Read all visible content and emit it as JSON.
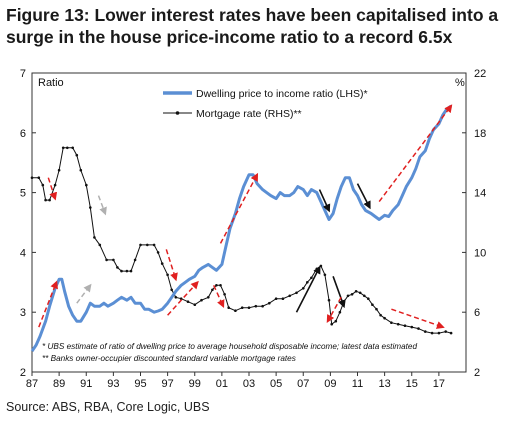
{
  "figure": {
    "title": "Figure 13: Lower interest rates have been capitalised into a surge in the house price-income ratio to a record 6.5x",
    "source": "Source:  ABS, RBA, Core Logic, UBS"
  },
  "chart_data": {
    "type": "line",
    "left_axis_label": "Ratio",
    "right_axis_label": "%",
    "ylim_left": [
      2,
      7
    ],
    "ylim_right": [
      2,
      22
    ],
    "y_ticks_left": [
      "2",
      "3",
      "4",
      "5",
      "6",
      "7"
    ],
    "y_ticks_right": [
      "2",
      "6",
      "10",
      "14",
      "18",
      "22"
    ],
    "x_ticks": [
      "87",
      "89",
      "91",
      "93",
      "95",
      "97",
      "99",
      "01",
      "03",
      "05",
      "07",
      "09",
      "11",
      "13",
      "15",
      "17"
    ],
    "xlim": [
      1987,
      2019
    ],
    "legend_position": "top-center",
    "notes": [
      "* UBS estimate of ratio of dwelling price to average household disposable income; latest data estimated",
      "** Banks owner-occupier discounted standard variable mortgage rates"
    ],
    "colors": {
      "price_ratio": "#5b8fd4",
      "mortgage": "#111111",
      "arrow_red": "#e02020",
      "arrow_grey": "#b0b0b0",
      "arrow_black": "#111111"
    },
    "series": [
      {
        "name": "Dwelling price to income ratio (LHS)*",
        "axis": "left",
        "x": [
          1987.0,
          1987.3,
          1987.6,
          1988.0,
          1988.3,
          1988.7,
          1989.0,
          1989.2,
          1989.4,
          1989.7,
          1990.0,
          1990.3,
          1990.6,
          1991.0,
          1991.3,
          1991.6,
          1992.0,
          1992.3,
          1992.6,
          1993.0,
          1993.3,
          1993.6,
          1994.0,
          1994.3,
          1994.6,
          1995.0,
          1995.3,
          1995.6,
          1996.0,
          1996.3,
          1996.6,
          1997.0,
          1997.3,
          1997.6,
          1998.0,
          1998.3,
          1998.6,
          1999.0,
          1999.3,
          1999.6,
          2000.0,
          2000.3,
          2000.6,
          2001.0,
          2001.3,
          2001.6,
          2002.0,
          2002.3,
          2002.6,
          2003.0,
          2003.3,
          2003.6,
          2004.0,
          2004.3,
          2004.6,
          2005.0,
          2005.3,
          2005.6,
          2006.0,
          2006.3,
          2006.6,
          2007.0,
          2007.3,
          2007.6,
          2008.0,
          2008.3,
          2008.6,
          2008.9,
          2009.2,
          2009.5,
          2009.8,
          2010.1,
          2010.4,
          2010.7,
          2011.0,
          2011.3,
          2011.6,
          2012.0,
          2012.3,
          2012.6,
          2013.0,
          2013.3,
          2013.6,
          2014.0,
          2014.3,
          2014.6,
          2015.0,
          2015.3,
          2015.6,
          2016.0,
          2016.3,
          2016.6,
          2017.0,
          2017.3,
          2017.6,
          2017.9
        ],
        "values": [
          2.35,
          2.45,
          2.6,
          2.85,
          3.1,
          3.4,
          3.55,
          3.55,
          3.35,
          3.1,
          2.95,
          2.85,
          2.85,
          3.0,
          3.15,
          3.1,
          3.1,
          3.15,
          3.1,
          3.15,
          3.2,
          3.25,
          3.2,
          3.25,
          3.15,
          3.15,
          3.05,
          3.05,
          3.0,
          3.02,
          3.05,
          3.15,
          3.25,
          3.35,
          3.45,
          3.5,
          3.55,
          3.6,
          3.7,
          3.75,
          3.8,
          3.75,
          3.7,
          3.8,
          4.1,
          4.4,
          4.65,
          4.9,
          5.1,
          5.3,
          5.3,
          5.15,
          5.05,
          5.0,
          4.95,
          4.9,
          5.0,
          4.95,
          4.95,
          5.0,
          5.1,
          5.05,
          4.95,
          5.05,
          5.0,
          4.85,
          4.7,
          4.55,
          4.65,
          4.9,
          5.1,
          5.25,
          5.25,
          5.05,
          4.95,
          4.8,
          4.7,
          4.65,
          4.6,
          4.55,
          4.62,
          4.6,
          4.7,
          4.8,
          4.95,
          5.1,
          5.25,
          5.4,
          5.6,
          5.7,
          5.9,
          6.05,
          6.15,
          6.3,
          6.4,
          6.45
        ]
      },
      {
        "name": "Mortgage rate (RHS)**",
        "axis": "right",
        "x": [
          1987.0,
          1987.5,
          1987.8,
          1988.0,
          1988.3,
          1988.7,
          1989.0,
          1989.3,
          1989.6,
          1990.0,
          1990.3,
          1990.6,
          1991.0,
          1991.3,
          1991.6,
          1992.0,
          1992.5,
          1993.0,
          1993.3,
          1993.6,
          1994.0,
          1994.3,
          1994.6,
          1995.0,
          1995.5,
          1996.0,
          1996.3,
          1996.6,
          1997.0,
          1997.3,
          1997.6,
          1998.0,
          1998.5,
          1999.0,
          1999.5,
          2000.0,
          2000.3,
          2000.6,
          2000.9,
          2001.2,
          2001.5,
          2002.0,
          2002.5,
          2003.0,
          2003.5,
          2004.0,
          2004.5,
          2005.0,
          2005.5,
          2006.0,
          2006.5,
          2007.0,
          2007.3,
          2007.6,
          2008.0,
          2008.3,
          2008.6,
          2008.9,
          2009.1,
          2009.4,
          2009.7,
          2010.0,
          2010.3,
          2010.6,
          2010.9,
          2011.2,
          2011.5,
          2011.8,
          2012.1,
          2012.4,
          2012.7,
          2013.0,
          2013.5,
          2014.0,
          2014.5,
          2015.0,
          2015.5,
          2016.0,
          2016.5,
          2017.0,
          2017.5,
          2017.9
        ],
        "values": [
          15.0,
          15.0,
          14.5,
          13.5,
          13.5,
          14.5,
          15.5,
          17.0,
          17.0,
          17.0,
          16.5,
          15.5,
          14.5,
          13.0,
          11.0,
          10.5,
          9.5,
          9.5,
          9.0,
          8.75,
          8.75,
          8.75,
          9.5,
          10.5,
          10.5,
          10.5,
          10.0,
          9.25,
          8.5,
          7.5,
          7.0,
          6.9,
          6.7,
          6.5,
          6.8,
          7.0,
          7.5,
          7.8,
          7.8,
          7.2,
          6.3,
          6.1,
          6.3,
          6.3,
          6.4,
          6.4,
          6.6,
          6.9,
          6.9,
          7.1,
          7.3,
          7.6,
          8.0,
          8.3,
          8.9,
          9.1,
          8.5,
          6.8,
          5.2,
          5.4,
          6.0,
          6.7,
          7.1,
          7.2,
          7.4,
          7.3,
          7.1,
          6.9,
          6.5,
          6.2,
          5.8,
          5.6,
          5.3,
          5.2,
          5.1,
          5.0,
          4.9,
          4.7,
          4.6,
          4.6,
          4.7,
          4.6
        ]
      }
    ],
    "arrows": [
      {
        "color": "red",
        "from": [
          1988.2,
          5.25
        ],
        "to": [
          1988.7,
          4.9
        ],
        "axis": "left"
      },
      {
        "color": "red",
        "from": [
          1987.5,
          2.75
        ],
        "to": [
          1988.8,
          3.5
        ],
        "axis": "left"
      },
      {
        "color": "grey",
        "from": [
          1991.9,
          4.95
        ],
        "to": [
          1992.4,
          4.65
        ],
        "axis": "left"
      },
      {
        "color": "grey",
        "from": [
          1990.3,
          3.15
        ],
        "to": [
          1991.3,
          3.45
        ],
        "axis": "left"
      },
      {
        "color": "red",
        "from": [
          1996.9,
          4.05
        ],
        "to": [
          1997.6,
          3.55
        ],
        "axis": "left"
      },
      {
        "color": "red",
        "from": [
          1997.0,
          2.95
        ],
        "to": [
          1999.2,
          3.5
        ],
        "axis": "left"
      },
      {
        "color": "red",
        "from": [
          2000.4,
          3.45
        ],
        "to": [
          2001.1,
          3.1
        ],
        "axis": "left"
      },
      {
        "color": "red",
        "from": [
          2000.9,
          4.15
        ],
        "to": [
          2003.6,
          5.3
        ],
        "axis": "left"
      },
      {
        "color": "black",
        "from": [
          2006.5,
          3.0
        ],
        "to": [
          2008.2,
          3.75
        ],
        "axis": "left"
      },
      {
        "color": "black",
        "from": [
          2008.2,
          5.05
        ],
        "to": [
          2008.9,
          4.7
        ],
        "axis": "left"
      },
      {
        "color": "black",
        "from": [
          2009.2,
          3.6
        ],
        "to": [
          2010.0,
          3.1
        ],
        "axis": "left"
      },
      {
        "color": "red",
        "from": [
          2009.8,
          3.25
        ],
        "to": [
          2008.8,
          2.85
        ],
        "axis": "left"
      },
      {
        "color": "black",
        "from": [
          2011.0,
          5.15
        ],
        "to": [
          2011.9,
          4.75
        ],
        "axis": "left"
      },
      {
        "color": "red",
        "from": [
          2012.6,
          4.85
        ],
        "to": [
          2017.9,
          6.45
        ],
        "axis": "left"
      },
      {
        "color": "red",
        "from": [
          2013.5,
          3.05
        ],
        "to": [
          2017.3,
          2.75
        ],
        "axis": "left"
      }
    ]
  }
}
